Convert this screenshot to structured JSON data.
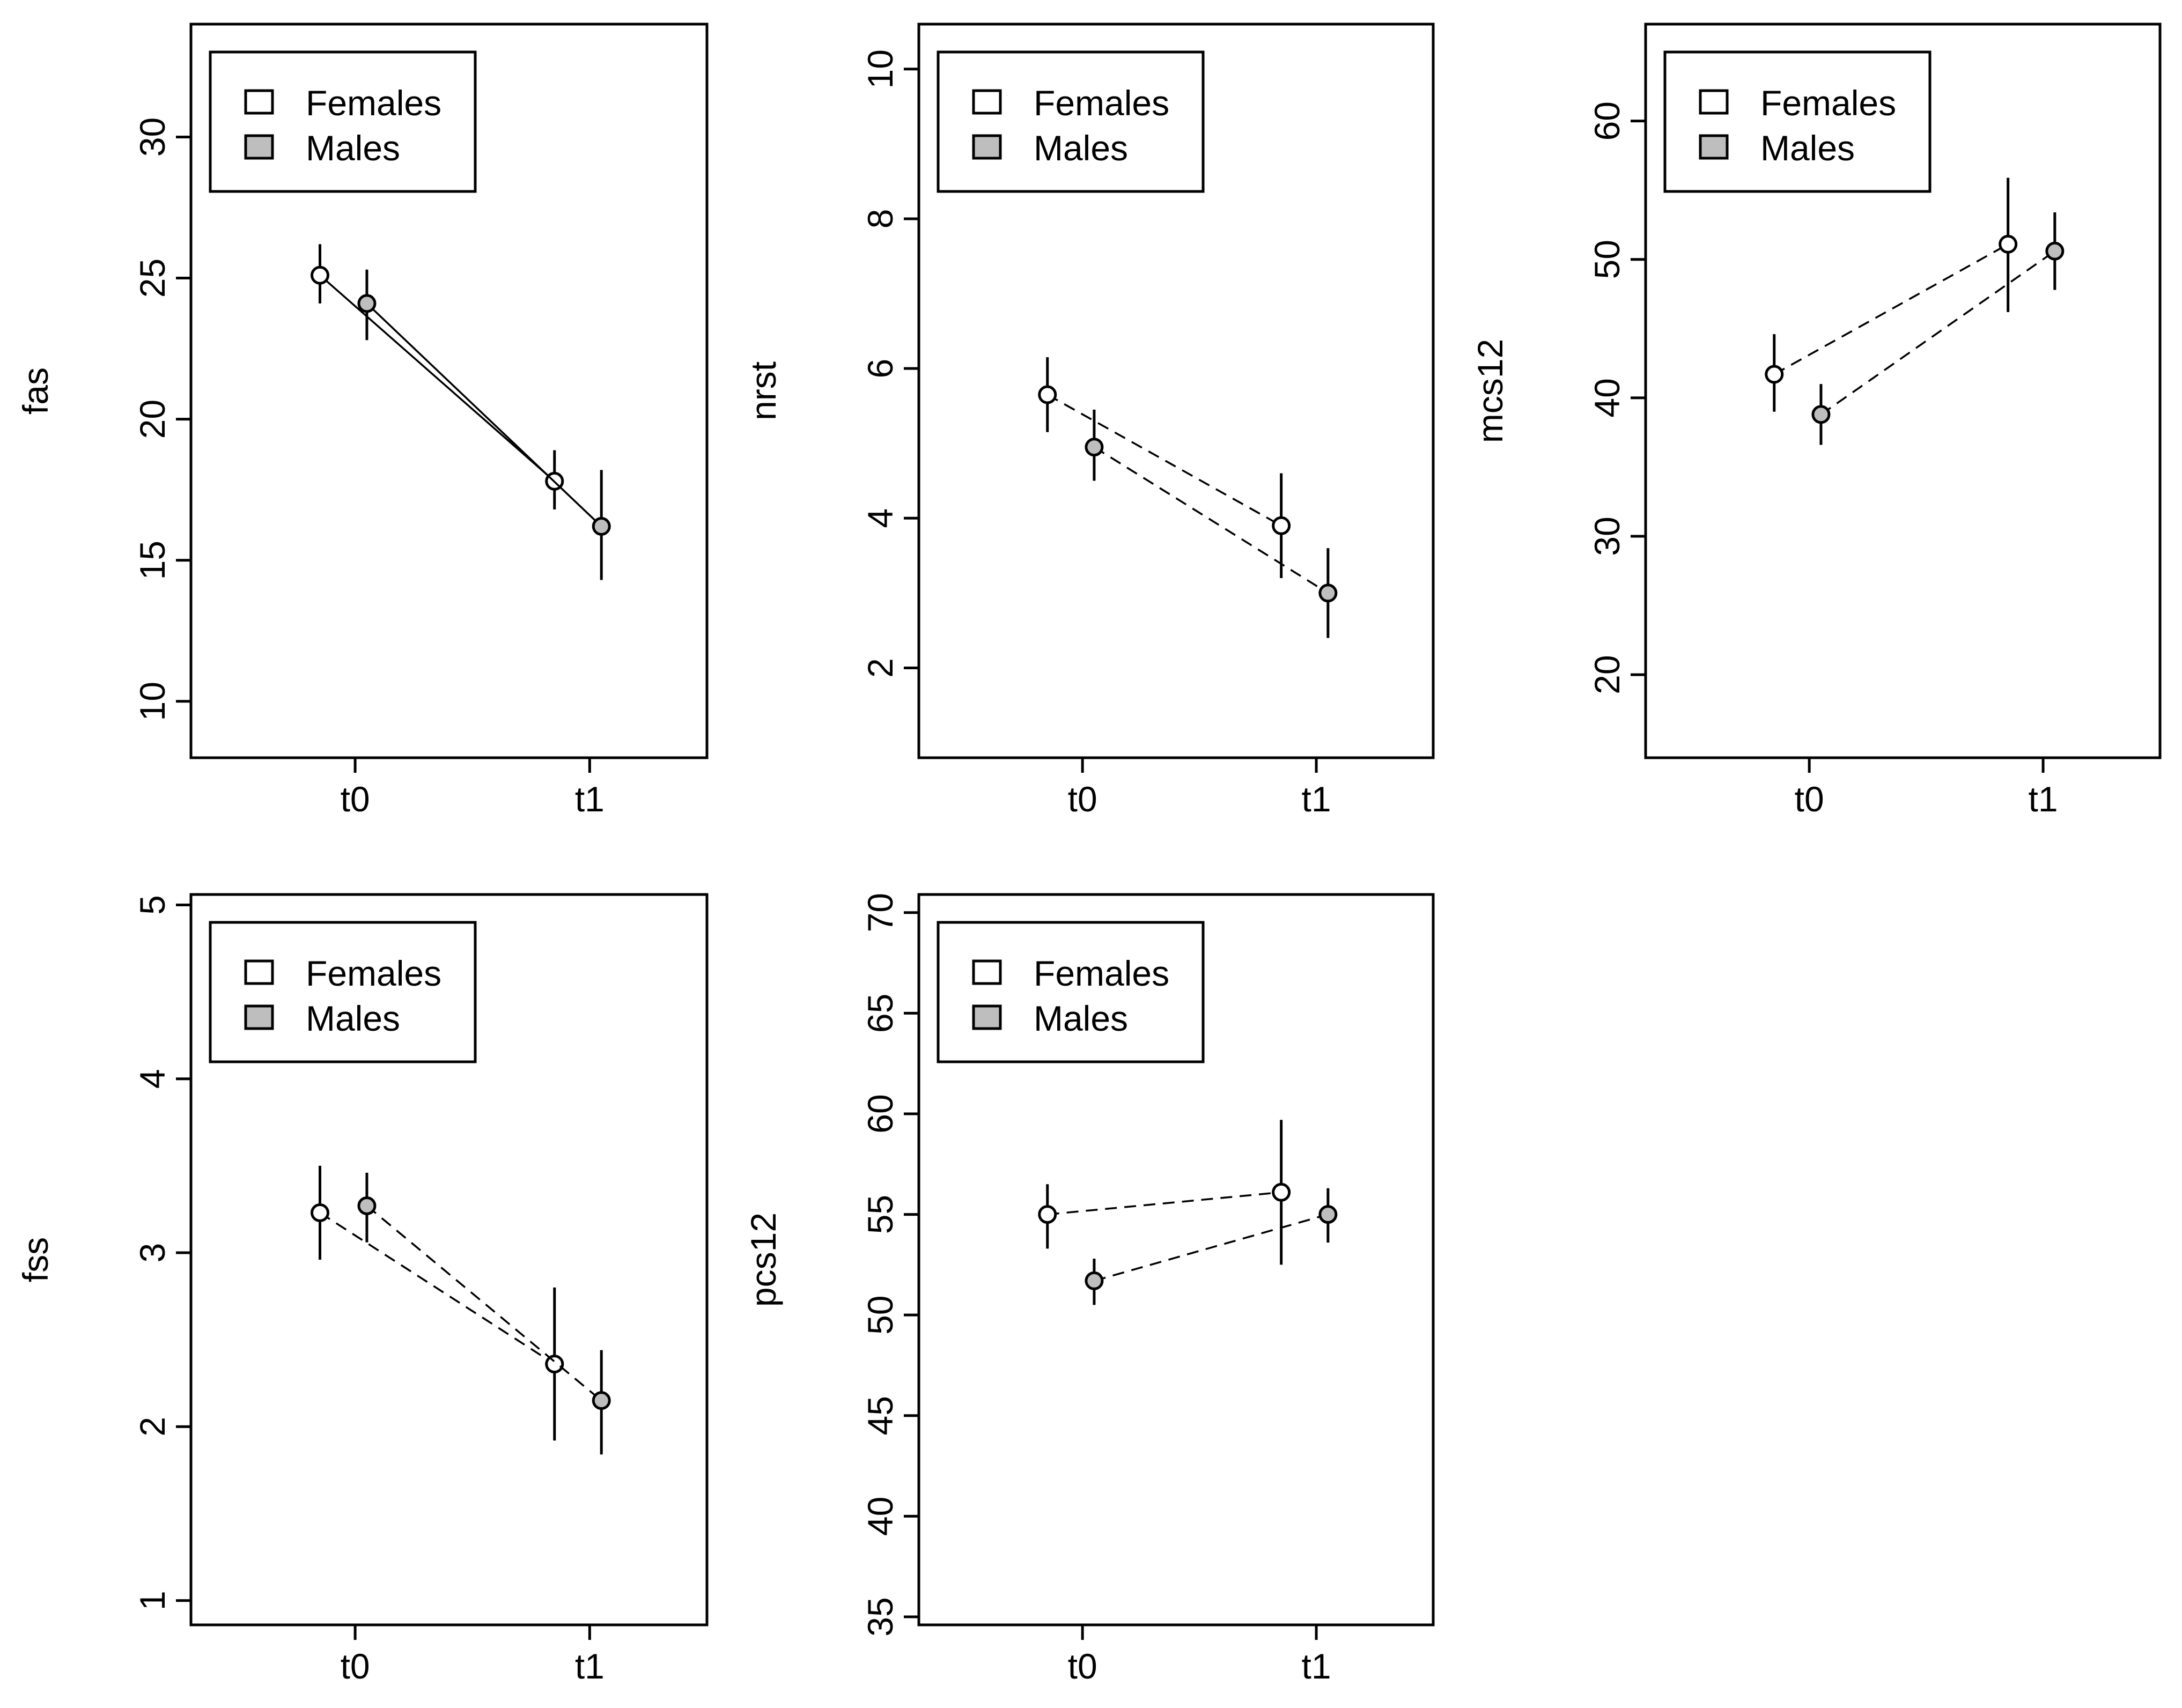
{
  "legend": {
    "entries": [
      {
        "label": "Females",
        "fill": "#ffffff"
      },
      {
        "label": "Males",
        "fill": "#bebebe"
      }
    ]
  },
  "colors": {
    "females": "#ffffff",
    "males": "#bebebe",
    "line": "#000000"
  },
  "chart_data": [
    {
      "type": "line",
      "ylabel": "fas",
      "categories": [
        "t0",
        "t1"
      ],
      "ylim": [
        8,
        34
      ],
      "yticks": [
        10,
        15,
        20,
        25,
        30
      ],
      "line_style": "solid",
      "legend_position": "top-left",
      "series": [
        {
          "name": "Females",
          "values": [
            25.1,
            17.8
          ],
          "lower": [
            24.1,
            16.8
          ],
          "upper": [
            26.2,
            18.9
          ]
        },
        {
          "name": "Males",
          "values": [
            24.1,
            16.2
          ],
          "lower": [
            22.8,
            14.3
          ],
          "upper": [
            25.3,
            18.2
          ]
        }
      ]
    },
    {
      "type": "line",
      "ylabel": "nrst",
      "categories": [
        "t0",
        "t1"
      ],
      "ylim": [
        0.8,
        10.6
      ],
      "yticks": [
        2,
        4,
        6,
        8,
        10
      ],
      "line_style": "dashed",
      "legend_position": "top-left",
      "series": [
        {
          "name": "Females",
          "values": [
            5.65,
            3.9
          ],
          "lower": [
            5.15,
            3.2
          ],
          "upper": [
            6.15,
            4.6
          ]
        },
        {
          "name": "Males",
          "values": [
            4.95,
            3.0
          ],
          "lower": [
            4.5,
            2.4
          ],
          "upper": [
            5.45,
            3.6
          ]
        }
      ]
    },
    {
      "type": "line",
      "ylabel": "mcs12",
      "categories": [
        "t0",
        "t1"
      ],
      "ylim": [
        14,
        67
      ],
      "yticks": [
        20,
        30,
        40,
        50,
        60
      ],
      "line_style": "dashed",
      "legend_position": "top-left",
      "series": [
        {
          "name": "Females",
          "values": [
            41.7,
            51.1
          ],
          "lower": [
            39.0,
            46.2
          ],
          "upper": [
            44.6,
            55.9
          ]
        },
        {
          "name": "Males",
          "values": [
            38.8,
            50.6
          ],
          "lower": [
            36.6,
            47.8
          ],
          "upper": [
            41.0,
            53.4
          ]
        }
      ]
    },
    {
      "type": "line",
      "ylabel": "fss",
      "categories": [
        "t0",
        "t1"
      ],
      "ylim": [
        0.86,
        5.06
      ],
      "yticks": [
        1,
        2,
        3,
        4,
        5
      ],
      "line_style": "dashed",
      "legend_position": "top-left",
      "series": [
        {
          "name": "Females",
          "values": [
            3.23,
            2.36
          ],
          "lower": [
            2.96,
            1.92
          ],
          "upper": [
            3.5,
            2.8
          ]
        },
        {
          "name": "Males",
          "values": [
            3.27,
            2.15
          ],
          "lower": [
            3.06,
            1.84
          ],
          "upper": [
            3.46,
            2.44
          ]
        }
      ]
    },
    {
      "type": "line",
      "ylabel": "pcs12",
      "categories": [
        "t0",
        "t1"
      ],
      "ylim": [
        34.6,
        70.9
      ],
      "yticks": [
        35,
        40,
        45,
        50,
        55,
        60,
        65,
        70
      ],
      "line_style": "dashed",
      "legend_position": "top-left",
      "series": [
        {
          "name": "Females",
          "values": [
            55.0,
            56.1
          ],
          "lower": [
            53.3,
            52.5
          ],
          "upper": [
            56.5,
            59.7
          ]
        },
        {
          "name": "Males",
          "values": [
            51.7,
            55.0
          ],
          "lower": [
            50.5,
            53.6
          ],
          "upper": [
            52.8,
            56.3
          ]
        }
      ]
    }
  ]
}
